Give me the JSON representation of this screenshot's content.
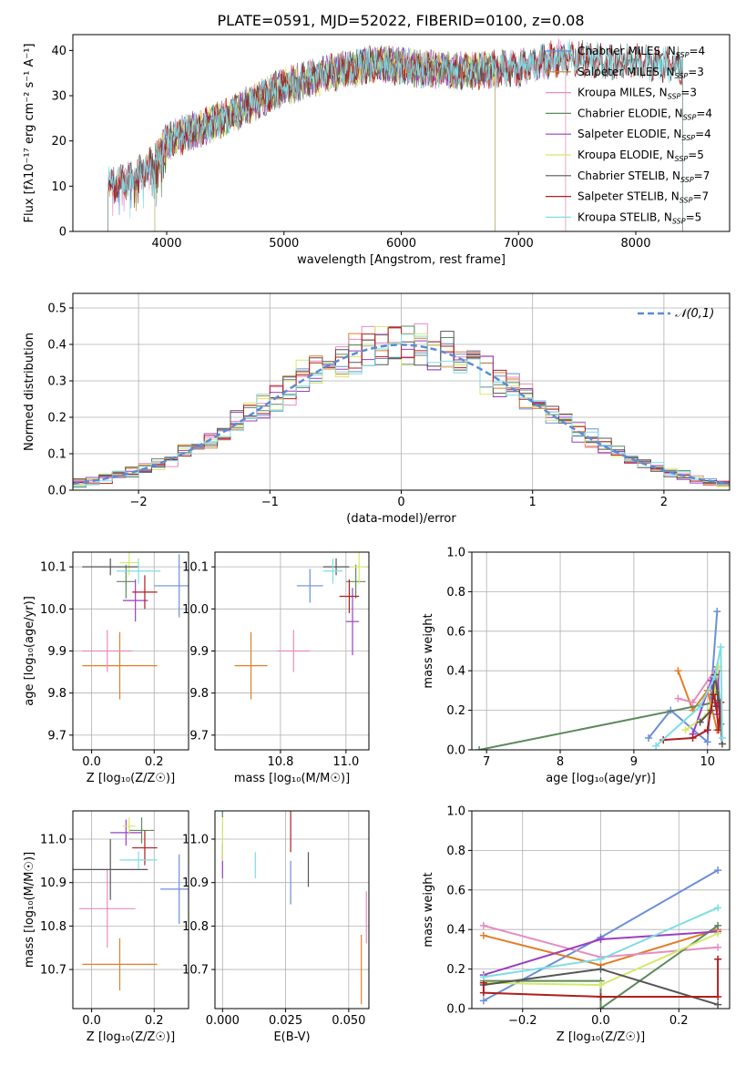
{
  "figure": {
    "title": "PLATE=0591, MJD=52022, FIBERID=0100, z=0.08",
    "colors": [
      "#6b8fd8",
      "#e07e28",
      "#e68cc0",
      "#5c8a5c",
      "#9b3fbf",
      "#d6e86a",
      "#555555",
      "#b01e1e",
      "#7fdde4"
    ]
  },
  "chart_data": [
    {
      "id": "spectrum",
      "type": "line",
      "title": "PLATE=0591, MJD=52022, FIBERID=0100, z=0.08",
      "xlabel": "wavelength [Angstrom, rest frame]",
      "ylabel": "Flux [fλ10⁻¹⁷ erg cm⁻² s⁻¹ A⁻¹]",
      "xlim": [
        3200,
        8800
      ],
      "ylim": [
        0,
        43.5
      ],
      "xticks": [
        4000,
        5000,
        6000,
        7000,
        8000
      ],
      "yticks": [
        0,
        10,
        20,
        30,
        40
      ],
      "grid": false,
      "legend": "top-right",
      "continuum": {
        "x": [
          3500,
          3700,
          3900,
          4000,
          4100,
          4300,
          4500,
          4700,
          5000,
          5200,
          5400,
          5600,
          5800,
          6000,
          6200,
          6400,
          6600,
          6800,
          7000,
          7200,
          7400,
          7600,
          7800,
          8000,
          8200,
          8400
        ],
        "y": [
          10,
          12,
          15,
          20,
          21,
          23,
          25,
          28,
          32,
          33.5,
          35,
          36,
          37,
          36.5,
          36,
          35.5,
          35.5,
          36,
          36,
          37.5,
          38.5,
          38,
          37.5,
          37.5,
          37,
          36.5
        ]
      },
      "series": [
        {
          "name": "Chabrier MILES, N$_{SSP}$=4",
          "label_main": "Chabrier MILES, N",
          "label_sub": "SSP",
          "label_tail": "=4",
          "xrange": [
            3500,
            7400
          ]
        },
        {
          "name": "Salpeter MILES, N$_{SSP}$=3",
          "label_main": "Salpeter MILES, N",
          "label_sub": "SSP",
          "label_tail": "=3",
          "xrange": [
            3500,
            7400
          ]
        },
        {
          "name": "Kroupa MILES, N$_{SSP}$=3",
          "label_main": "Kroupa MILES, N",
          "label_sub": "SSP",
          "label_tail": "=3",
          "xrange": [
            3500,
            7400
          ]
        },
        {
          "name": "Chabrier ELODIE, N$_{SSP}$=4",
          "label_main": "Chabrier ELODIE, N",
          "label_sub": "SSP",
          "label_tail": "=4",
          "xrange": [
            3900,
            6800
          ]
        },
        {
          "name": "Salpeter ELODIE, N$_{SSP}$=4",
          "label_main": "Salpeter ELODIE, N",
          "label_sub": "SSP",
          "label_tail": "=4",
          "xrange": [
            3900,
            6800
          ]
        },
        {
          "name": "Kroupa ELODIE, N$_{SSP}$=5",
          "label_main": "Kroupa ELODIE, N",
          "label_sub": "SSP",
          "label_tail": "=5",
          "xrange": [
            3900,
            6800
          ]
        },
        {
          "name": "Chabrier STELIB, N$_{SSP}$=7",
          "label_main": "Chabrier STELIB, N",
          "label_sub": "SSP",
          "label_tail": "=7",
          "xrange": [
            3500,
            8400
          ]
        },
        {
          "name": "Salpeter STELIB, N$_{SSP}$=7",
          "label_main": "Salpeter STELIB, N",
          "label_sub": "SSP",
          "label_tail": "=7",
          "xrange": [
            3500,
            8400
          ]
        },
        {
          "name": "Kroupa STELIB, N$_{SSP}$=5",
          "label_main": "Kroupa STELIB, N",
          "label_sub": "SSP",
          "label_tail": "=5",
          "xrange": [
            3500,
            8400
          ]
        }
      ]
    },
    {
      "id": "residuals",
      "type": "histogram",
      "xlabel": "(data-model)/error",
      "ylabel": "Normed distribution",
      "xlim": [
        -2.5,
        2.5
      ],
      "ylim": [
        0,
        0.54
      ],
      "xticks": [
        -2,
        -1,
        0,
        1,
        2
      ],
      "yticks": [
        0.0,
        0.1,
        0.2,
        0.3,
        0.4,
        0.5
      ],
      "grid": true,
      "legend": "top-right",
      "bin_width": 0.1,
      "reference": {
        "name": "𝒩(0,1)",
        "mean": 0,
        "sigma": 1
      }
    },
    {
      "id": "age-vs-Z",
      "type": "errorbar",
      "xlabel": "Z [log₁₀(Z/Z☉)]",
      "ylabel": "age  [log₁₀(age/yr)]",
      "xlim": [
        -0.06,
        0.31
      ],
      "ylim": [
        9.665,
        10.135
      ],
      "xticks": [
        0.0,
        0.2
      ],
      "yticks": [
        9.7,
        9.8,
        9.9,
        10.0,
        10.1
      ],
      "grid": true,
      "points": [
        {
          "x": 0.28,
          "y": 10.055,
          "xerr": 0.08,
          "yerr": 0.075
        },
        {
          "x": 0.09,
          "y": 9.865,
          "xerr": 0.12,
          "yerr": 0.08
        },
        {
          "x": 0.05,
          "y": 9.9,
          "xerr": 0.08,
          "yerr": 0.05
        },
        {
          "x": 0.11,
          "y": 10.065,
          "xerr": 0.03,
          "yerr": 0.04
        },
        {
          "x": 0.14,
          "y": 10.02,
          "xerr": 0.04,
          "yerr": 0.05
        },
        {
          "x": 0.12,
          "y": 10.11,
          "xerr": 0.03,
          "yerr": 0.03
        },
        {
          "x": 0.06,
          "y": 10.1,
          "xerr": 0.09,
          "yerr": 0.02
        },
        {
          "x": 0.17,
          "y": 10.04,
          "xerr": 0.04,
          "yerr": 0.04
        },
        {
          "x": 0.15,
          "y": 10.09,
          "xerr": 0.07,
          "yerr": 0.03
        }
      ]
    },
    {
      "id": "age-vs-mass",
      "type": "errorbar",
      "xlabel": "mass [log₁₀(M/M☉)]",
      "ylabel": "",
      "xlim": [
        10.6,
        11.07
      ],
      "ylim": [
        9.665,
        10.135
      ],
      "xticks": [
        10.8,
        11.0
      ],
      "yticks": [
        9.7,
        9.8,
        9.9,
        10.0,
        10.1
      ],
      "grid": true,
      "points": [
        {
          "x": 10.89,
          "y": 10.055,
          "xerr": 0.04,
          "yerr": 0.04
        },
        {
          "x": 10.71,
          "y": 9.865,
          "xerr": 0.05,
          "yerr": 0.08
        },
        {
          "x": 10.84,
          "y": 9.9,
          "xerr": 0.05,
          "yerr": 0.05
        },
        {
          "x": 11.03,
          "y": 10.065,
          "xerr": 0.03,
          "yerr": 0.04
        },
        {
          "x": 11.02,
          "y": 9.97,
          "xerr": 0.02,
          "yerr": 0.08
        },
        {
          "x": 11.04,
          "y": 10.1,
          "xerr": 0.02,
          "yerr": 0.04
        },
        {
          "x": 10.97,
          "y": 10.1,
          "xerr": 0.04,
          "yerr": 0.02
        },
        {
          "x": 11.01,
          "y": 10.03,
          "xerr": 0.03,
          "yerr": 0.04
        },
        {
          "x": 10.96,
          "y": 10.09,
          "xerr": 0.03,
          "yerr": 0.03
        }
      ]
    },
    {
      "id": "mass-weight-vs-age",
      "type": "line",
      "xlabel": "age  [log₁₀(age/yr)]",
      "ylabel": "mass weight",
      "xlim": [
        6.8,
        10.3
      ],
      "ylim": [
        0,
        1
      ],
      "xticks": [
        7,
        8,
        9,
        10
      ],
      "yticks": [
        0.0,
        0.2,
        0.4,
        0.6,
        0.8,
        1.0
      ],
      "grid": true,
      "series": [
        {
          "x": [
            9.2,
            9.5,
            10.0,
            10.13
          ],
          "y": [
            0.06,
            0.2,
            0.04,
            0.7
          ]
        },
        {
          "x": [
            9.6,
            9.8,
            10.0,
            10.13
          ],
          "y": [
            0.4,
            0.2,
            0.3,
            0.1
          ]
        },
        {
          "x": [
            9.6,
            9.8,
            10.13
          ],
          "y": [
            0.26,
            0.24,
            0.42
          ]
        },
        {
          "x": [
            6.9,
            10.1,
            10.13,
            10.18
          ],
          "y": [
            0.0,
            0.24,
            0.42,
            0.13
          ]
        },
        {
          "x": [
            9.8,
            10.05,
            10.13,
            10.15
          ],
          "y": [
            0.08,
            0.35,
            0.18,
            0.4
          ]
        },
        {
          "x": [
            9.7,
            10.0,
            10.1,
            10.15
          ],
          "y": [
            0.1,
            0.18,
            0.3,
            0.42
          ]
        },
        {
          "x": [
            9.9,
            10.05,
            10.1,
            10.15,
            10.2
          ],
          "y": [
            0.14,
            0.2,
            0.38,
            0.25,
            0.03
          ]
        },
        {
          "x": [
            9.4,
            9.8,
            10.0,
            10.08,
            10.12,
            10.15,
            10.18
          ],
          "y": [
            0.05,
            0.06,
            0.1,
            0.28,
            0.22,
            0.1,
            0.24
          ]
        },
        {
          "x": [
            9.3,
            9.9,
            10.1,
            10.18,
            10.2
          ],
          "y": [
            0.02,
            0.22,
            0.37,
            0.52,
            0.06
          ]
        }
      ]
    },
    {
      "id": "mass-vs-Z",
      "type": "errorbar",
      "xlabel": "Z [log₁₀(Z/Z☉)]",
      "ylabel": "mass [log₁₀(M/M☉)]",
      "xlim": [
        -0.06,
        0.31
      ],
      "ylim": [
        10.61,
        11.065
      ],
      "xticks": [
        0.0,
        0.2
      ],
      "yticks": [
        10.7,
        10.8,
        10.9,
        11.0
      ],
      "grid": true,
      "points": [
        {
          "x": 0.28,
          "y": 10.885,
          "xerr": 0.06,
          "yerr": 0.08
        },
        {
          "x": 0.09,
          "y": 10.712,
          "xerr": 0.12,
          "yerr": 0.06
        },
        {
          "x": 0.05,
          "y": 10.84,
          "xerr": 0.09,
          "yerr": 0.09
        },
        {
          "x": 0.16,
          "y": 11.02,
          "xerr": 0.04,
          "yerr": 0.03
        },
        {
          "x": 0.11,
          "y": 11.015,
          "xerr": 0.05,
          "yerr": 0.03
        },
        {
          "x": 0.12,
          "y": 11.03,
          "xerr": 0.02,
          "yerr": 0.02
        },
        {
          "x": 0.06,
          "y": 10.93,
          "xerr": 0.12,
          "yerr": 0.07
        },
        {
          "x": 0.17,
          "y": 10.98,
          "xerr": 0.04,
          "yerr": 0.04
        },
        {
          "x": 0.15,
          "y": 10.952,
          "xerr": 0.06,
          "yerr": 0.02
        }
      ]
    },
    {
      "id": "mass-vs-EBV",
      "type": "errorbar",
      "xlabel": "E(B-V)",
      "ylabel": "",
      "xlim": [
        -0.003,
        0.058
      ],
      "ylim": [
        10.61,
        11.065
      ],
      "xticks": [
        0.0,
        0.025,
        0.05
      ],
      "xticklabels": [
        "0.000",
        "0.025",
        "0.050"
      ],
      "yticks": [
        10.7,
        10.8,
        10.9,
        11.0
      ],
      "grid": true,
      "points": [
        {
          "x": 0.027,
          "y": 10.9,
          "xerr": 0,
          "yerr": 0.05
        },
        {
          "x": 0.055,
          "y": 10.7,
          "xerr": 0,
          "yerr": 0.08
        },
        {
          "x": 0.057,
          "y": 10.82,
          "xerr": 0,
          "yerr": 0.06
        },
        {
          "x": 0.0,
          "y": 11.06,
          "xerr": 0,
          "yerr": 0.01
        },
        {
          "x": 0.0,
          "y": 10.95,
          "xerr": 0,
          "yerr": 0.04
        },
        {
          "x": 0.0,
          "y": 11.0,
          "xerr": 0,
          "yerr": 0.05
        },
        {
          "x": 0.034,
          "y": 10.93,
          "xerr": 0,
          "yerr": 0.04
        },
        {
          "x": 0.027,
          "y": 11.05,
          "xerr": 0,
          "yerr": 0.08
        },
        {
          "x": 0.013,
          "y": 10.94,
          "xerr": 0,
          "yerr": 0.03
        }
      ]
    },
    {
      "id": "mass-weight-vs-Z",
      "type": "line",
      "xlabel": "Z [log₁₀(Z/Z☉)]",
      "ylabel": "mass weight",
      "xlim": [
        -0.33,
        0.33
      ],
      "ylim": [
        0,
        1
      ],
      "xticks": [
        -0.2,
        0.0,
        0.2
      ],
      "xticklabels": [
        "−0.2",
        "0.0",
        "0.2"
      ],
      "yticks": [
        0.0,
        0.2,
        0.4,
        0.6,
        0.8,
        1.0
      ],
      "grid": true,
      "series": [
        {
          "x": [
            -0.3,
            0.0,
            0.3
          ],
          "y": [
            0.04,
            0.36,
            0.7
          ]
        },
        {
          "x": [
            -0.3,
            0.0,
            0.3
          ],
          "y": [
            0.37,
            0.22,
            0.4
          ]
        },
        {
          "x": [
            -0.3,
            0.0,
            0.3
          ],
          "y": [
            0.42,
            0.26,
            0.31
          ]
        },
        {
          "x": [
            -0.3,
            0.0,
            0.0,
            0.3
          ],
          "y": [
            0.14,
            0.14,
            0.0,
            0.42
          ]
        },
        {
          "x": [
            -0.3,
            0.0,
            0.3
          ],
          "y": [
            0.17,
            0.35,
            0.39
          ]
        },
        {
          "x": [
            -0.3,
            0.0,
            0.3
          ],
          "y": [
            0.13,
            0.12,
            0.38
          ]
        },
        {
          "x": [
            -0.3,
            0.0,
            0.3
          ],
          "y": [
            0.12,
            0.2,
            0.02
          ]
        },
        {
          "x": [
            -0.3,
            -0.3,
            0.0,
            0.3,
            0.3
          ],
          "y": [
            0.13,
            0.08,
            0.06,
            0.06,
            0.25
          ]
        },
        {
          "x": [
            -0.3,
            0.0,
            0.3
          ],
          "y": [
            0.16,
            0.25,
            0.51
          ]
        }
      ]
    }
  ]
}
